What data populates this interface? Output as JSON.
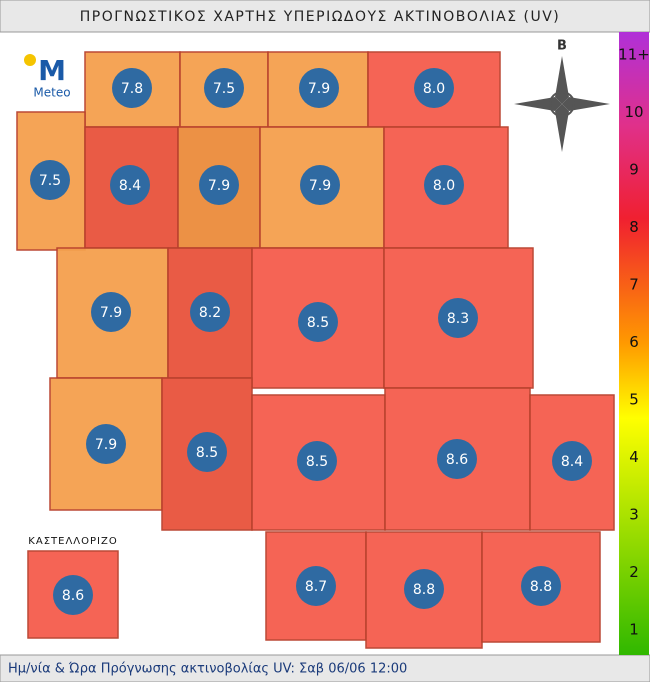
{
  "header": {
    "title": "ΠΡΟΓΝΩΣΤΙΚΟΣ ΧΑΡΤΗΣ ΥΠΕΡΙΩΔΟΥΣ ΑΚΤΙΝΟΒΟΛΙΑΣ (UV)"
  },
  "logo": {
    "letter": "M",
    "text": "Meteo"
  },
  "compass": {
    "north": "B"
  },
  "inset_label": "ΚΑΣΤΕΛΛΟΡΙΖΟ",
  "regions": [
    {
      "value": "7.8",
      "color": "#f5a04e"
    },
    {
      "value": "7.5",
      "color": "#f5a04e"
    },
    {
      "value": "7.9",
      "color": "#f5a04e"
    },
    {
      "value": "8.0",
      "color": "#f55c4c"
    },
    {
      "value": "7.5",
      "color": "#f5a04e"
    },
    {
      "value": "8.4",
      "color": "#e8533c"
    },
    {
      "value": "7.9",
      "color": "#ec8c3c"
    },
    {
      "value": "7.9",
      "color": "#f5a04e"
    },
    {
      "value": "8.0",
      "color": "#f55c4c"
    },
    {
      "value": "7.9",
      "color": "#f5a04e"
    },
    {
      "value": "8.2",
      "color": "#e8533c"
    },
    {
      "value": "8.5",
      "color": "#f55c4c"
    },
    {
      "value": "8.3",
      "color": "#f55c4c"
    },
    {
      "value": "7.9",
      "color": "#f5a04e"
    },
    {
      "value": "8.5",
      "color": "#e8533c"
    },
    {
      "value": "8.5",
      "color": "#f55c4c"
    },
    {
      "value": "8.6",
      "color": "#f55c4c"
    },
    {
      "value": "8.4",
      "color": "#f55c4c"
    },
    {
      "value": "8.7",
      "color": "#f55c4c"
    },
    {
      "value": "8.8",
      "color": "#f55c4c"
    },
    {
      "value": "8.8",
      "color": "#f55c4c"
    },
    {
      "value": "8.6",
      "color": "#f55c4c"
    }
  ],
  "scale": {
    "labels": [
      "11+",
      "10",
      "9",
      "8",
      "7",
      "6",
      "5",
      "4",
      "3",
      "2",
      "1"
    ]
  },
  "footer": {
    "text": "Ημ/νία & Ώρα Πρόγνωσης ακτινοβολίας UV:  Σαβ 06/06 12:00"
  }
}
